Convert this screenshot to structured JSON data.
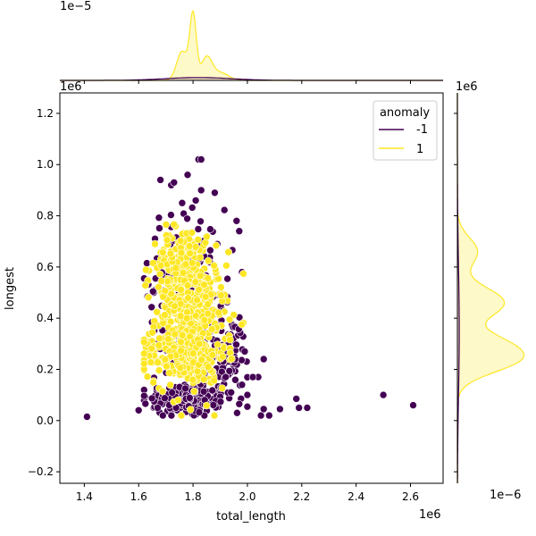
{
  "chart_data": {
    "type": "scatter",
    "title": "",
    "xlabel": "total_length",
    "ylabel": "longest",
    "x_offset_label": "1e6",
    "y_offset_label": "1e6",
    "xlim": [
      1.31,
      2.72
    ],
    "ylim": [
      -0.245,
      1.28
    ],
    "x_ticks": [
      "1.4",
      "1.6",
      "1.8",
      "2.0",
      "2.2",
      "2.4",
      "2.6"
    ],
    "y_ticks": [
      "−0.2",
      "0.0",
      "0.2",
      "0.4",
      "0.6",
      "0.8",
      "1.0",
      "1.2"
    ],
    "legend": {
      "title": "anomaly",
      "placement": "top-right",
      "entries": [
        "-1",
        "1"
      ]
    },
    "series": [
      {
        "name": "-1",
        "color": "#440154",
        "outliers": [
          [
            1.41,
            0.015
          ],
          [
            2.5,
            0.1
          ],
          [
            2.61,
            0.06
          ],
          [
            2.06,
            0.045
          ],
          [
            2.05,
            0.02
          ],
          [
            2.08,
            0.02
          ],
          [
            2.12,
            0.045
          ],
          [
            2.18,
            0.085
          ],
          [
            2.22,
            0.05
          ],
          [
            2.19,
            0.05
          ],
          [
            1.82,
            1.02
          ],
          [
            1.83,
            1.02
          ],
          [
            1.68,
            0.94
          ],
          [
            1.72,
            0.92
          ],
          [
            1.78,
            0.96
          ],
          [
            1.83,
            0.9
          ],
          [
            1.88,
            0.89
          ],
          [
            1.76,
            0.85
          ],
          [
            1.81,
            0.86
          ],
          [
            1.73,
            0.93
          ],
          [
            1.96,
            0.78
          ],
          [
            1.97,
            0.74
          ],
          [
            1.99,
            0.27
          ],
          [
            2.06,
            0.24
          ],
          [
            2.04,
            0.17
          ],
          [
            2.02,
            0.17
          ],
          [
            1.98,
            0.14
          ],
          [
            1.94,
            0.11
          ],
          [
            1.97,
            0.065
          ],
          [
            2.0,
            0.1
          ],
          [
            1.66,
            0.71
          ],
          [
            1.98,
            0.58
          ],
          [
            1.92,
            0.17
          ],
          [
            1.67,
            0.05
          ],
          [
            1.6,
            0.04
          ]
        ],
        "clusters": [
          {
            "cx": 1.78,
            "cy": 0.08,
            "sx": 0.085,
            "sy": 0.035,
            "n": 140
          },
          {
            "cx": 1.83,
            "cy": 0.25,
            "sx": 0.07,
            "sy": 0.1,
            "n": 120
          },
          {
            "cx": 1.78,
            "cy": 0.55,
            "sx": 0.07,
            "sy": 0.14,
            "n": 120
          },
          {
            "cx": 1.93,
            "cy": 0.26,
            "sx": 0.035,
            "sy": 0.08,
            "n": 50
          }
        ]
      },
      {
        "name": "1",
        "color": "#fde725",
        "clusters": [
          {
            "cx": 1.79,
            "cy": 0.4,
            "sx": 0.065,
            "sy": 0.13,
            "n": 420
          },
          {
            "cx": 1.77,
            "cy": 0.25,
            "sx": 0.075,
            "sy": 0.05,
            "n": 160
          },
          {
            "cx": 1.76,
            "cy": 0.6,
            "sx": 0.05,
            "sy": 0.08,
            "n": 120
          }
        ]
      }
    ],
    "marginal_x": {
      "offset_label": "1e−5",
      "series": [
        {
          "name": "1",
          "color": "#fde725",
          "peaks": [
            [
              1.8,
              0.012,
              1.0
            ],
            [
              1.76,
              0.02,
              0.45
            ],
            [
              1.85,
              0.02,
              0.35
            ],
            [
              1.9,
              0.03,
              0.12
            ]
          ]
        },
        {
          "name": "-1",
          "color": "#440154",
          "peaks": [
            [
              1.82,
              0.12,
              0.045
            ]
          ]
        }
      ]
    },
    "marginal_y": {
      "offset_label": "1e−6",
      "series": [
        {
          "name": "1",
          "color": "#fde725",
          "peaks": [
            [
              0.245,
              0.055,
              1.0
            ],
            [
              0.46,
              0.06,
              0.75
            ],
            [
              0.66,
              0.055,
              0.32
            ],
            [
              0.32,
              0.04,
              0.3
            ]
          ]
        },
        {
          "name": "-1",
          "color": "#440154",
          "peaks": [
            [
              0.35,
              0.25,
              0.03
            ]
          ]
        }
      ]
    }
  }
}
